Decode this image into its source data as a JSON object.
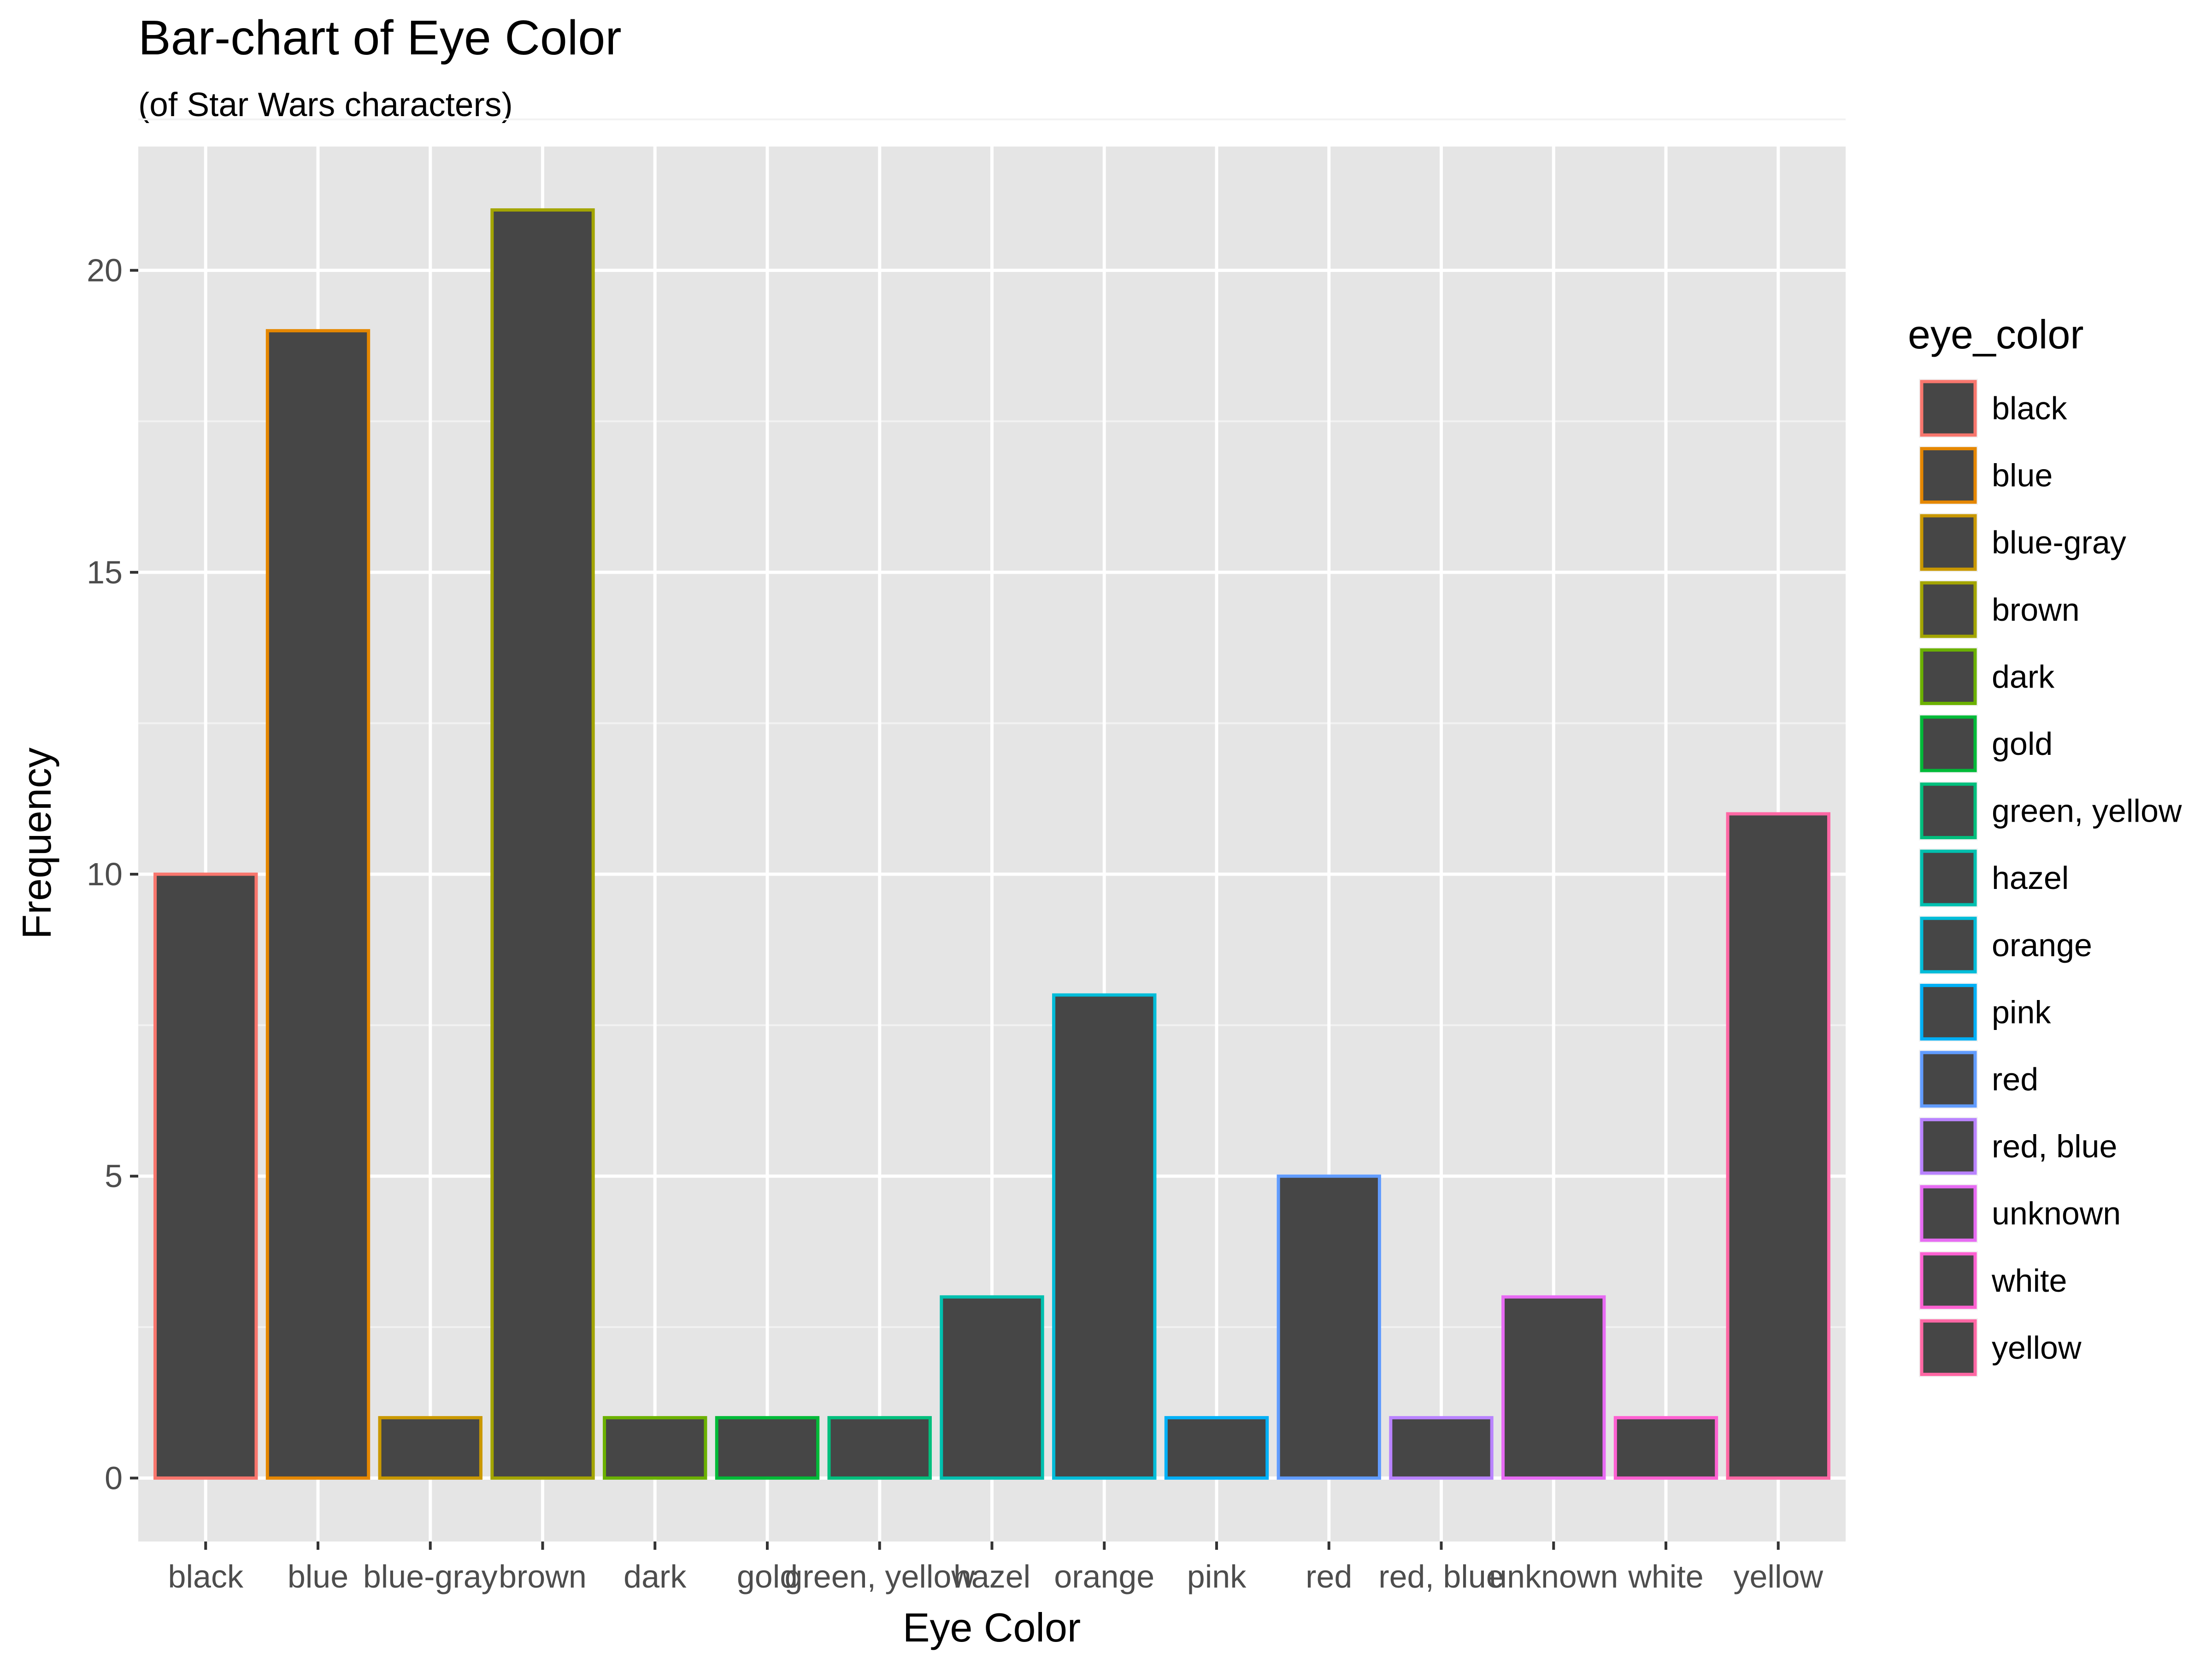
{
  "chart_data": {
    "type": "bar",
    "title": "Bar-chart of Eye Color",
    "subtitle": "(of Star Wars characters)",
    "xlabel": "Eye Color",
    "ylabel": "Frequency",
    "ylim": [
      -1.05,
      22.05
    ],
    "yticks": [
      0,
      5,
      10,
      15,
      20
    ],
    "grid": true,
    "legend_position": "right",
    "legend_title": "eye_color",
    "bar_fill": "#464646",
    "panel_background": "#e5e5e5",
    "categories": [
      "black",
      "blue",
      "blue-gray",
      "brown",
      "dark",
      "gold",
      "green, yellow",
      "hazel",
      "orange",
      "pink",
      "red",
      "red, blue",
      "unknown",
      "white",
      "yellow"
    ],
    "values": [
      10,
      19,
      1,
      21,
      1,
      1,
      1,
      3,
      8,
      1,
      5,
      1,
      3,
      1,
      11
    ],
    "colors": [
      "#F8766D",
      "#E58700",
      "#C99800",
      "#A3A500",
      "#6BB100",
      "#00BA38",
      "#00BF7D",
      "#00C0AF",
      "#00BCD8",
      "#00B0F6",
      "#619CFF",
      "#B983FF",
      "#E76BF3",
      "#FD61D1",
      "#FF67A4"
    ]
  }
}
